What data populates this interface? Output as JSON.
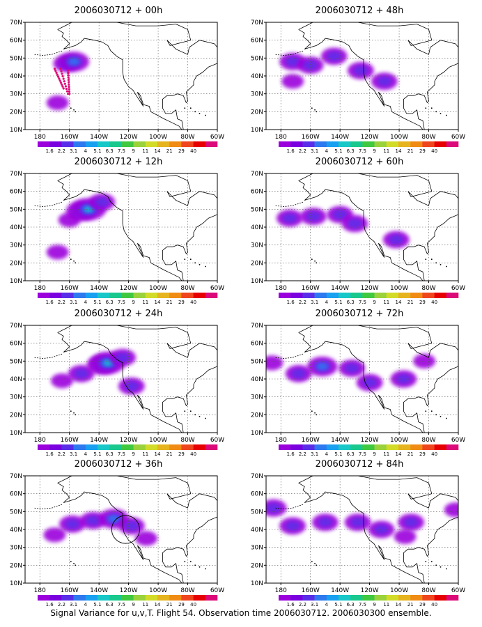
{
  "caption": "Signal Variance for u,v,T. Flight 54. Observation time 2006030712. 2006030300 ensemble.",
  "chart_data": [
    {
      "type": "heatmap",
      "title": "2006030712 + 00h",
      "blobs": [
        {
          "lon": -162,
          "lat": 47,
          "level": 3
        },
        {
          "lon": -157,
          "lat": 48,
          "level": 4
        },
        {
          "lon": -168,
          "lat": 25,
          "level": 2
        }
      ],
      "obs_points": true
    },
    {
      "type": "heatmap",
      "title": "2006030712 + 12h",
      "blobs": [
        {
          "lon": -160,
          "lat": 44,
          "level": 2
        },
        {
          "lon": -152,
          "lat": 49,
          "level": 4
        },
        {
          "lon": -147,
          "lat": 50,
          "level": 5
        },
        {
          "lon": -138,
          "lat": 54,
          "level": 3
        },
        {
          "lon": -168,
          "lat": 26,
          "level": 2
        }
      ]
    },
    {
      "type": "heatmap",
      "title": "2006030712 + 24h",
      "blobs": [
        {
          "lon": -165,
          "lat": 39,
          "level": 2
        },
        {
          "lon": -152,
          "lat": 43,
          "level": 3
        },
        {
          "lon": -138,
          "lat": 48,
          "level": 4
        },
        {
          "lon": -134,
          "lat": 49,
          "level": 5
        },
        {
          "lon": -124,
          "lat": 52,
          "level": 3
        },
        {
          "lon": -118,
          "lat": 36,
          "level": 3
        }
      ]
    },
    {
      "type": "heatmap",
      "title": "2006030712 + 36h",
      "blobs": [
        {
          "lon": -170,
          "lat": 37,
          "level": 2
        },
        {
          "lon": -158,
          "lat": 43,
          "level": 3
        },
        {
          "lon": -144,
          "lat": 45,
          "level": 3
        },
        {
          "lon": -130,
          "lat": 46,
          "level": 4
        },
        {
          "lon": -118,
          "lat": 42,
          "level": 3
        },
        {
          "lon": -108,
          "lat": 35,
          "level": 2
        }
      ],
      "circle": {
        "lon": -122,
        "lat": 40
      }
    },
    {
      "type": "heatmap",
      "title": "2006030712 + 48h",
      "blobs": [
        {
          "lon": -172,
          "lat": 48,
          "level": 3
        },
        {
          "lon": -160,
          "lat": 46,
          "level": 3
        },
        {
          "lon": -144,
          "lat": 51,
          "level": 3
        },
        {
          "lon": -126,
          "lat": 43,
          "level": 3
        },
        {
          "lon": -110,
          "lat": 37,
          "level": 3
        },
        {
          "lon": -172,
          "lat": 37,
          "level": 2
        }
      ]
    },
    {
      "type": "heatmap",
      "title": "2006030712 + 60h",
      "blobs": [
        {
          "lon": -174,
          "lat": 45,
          "level": 3
        },
        {
          "lon": -158,
          "lat": 46,
          "level": 3
        },
        {
          "lon": -140,
          "lat": 47,
          "level": 3
        },
        {
          "lon": -130,
          "lat": 42,
          "level": 3
        },
        {
          "lon": -102,
          "lat": 33,
          "level": 3
        }
      ]
    },
    {
      "type": "heatmap",
      "title": "2006030712 + 72h",
      "blobs": [
        {
          "lon": -186,
          "lat": 49,
          "level": 2
        },
        {
          "lon": -168,
          "lat": 43,
          "level": 3
        },
        {
          "lon": -152,
          "lat": 47,
          "level": 4
        },
        {
          "lon": -132,
          "lat": 46,
          "level": 3
        },
        {
          "lon": -120,
          "lat": 38,
          "level": 3
        },
        {
          "lon": -97,
          "lat": 40,
          "level": 3
        },
        {
          "lon": -83,
          "lat": 50,
          "level": 2
        }
      ]
    },
    {
      "type": "heatmap",
      "title": "2006030712 + 84h",
      "blobs": [
        {
          "lon": -185,
          "lat": 52,
          "level": 3
        },
        {
          "lon": -172,
          "lat": 42,
          "level": 3
        },
        {
          "lon": -150,
          "lat": 44,
          "level": 3
        },
        {
          "lon": -128,
          "lat": 44,
          "level": 3
        },
        {
          "lon": -112,
          "lat": 40,
          "level": 3
        },
        {
          "lon": -92,
          "lat": 44,
          "level": 3
        },
        {
          "lon": -96,
          "lat": 36,
          "level": 2
        },
        {
          "lon": -62,
          "lat": 51,
          "level": 2
        }
      ]
    }
  ],
  "axes": {
    "lat_ticks": [
      "10N",
      "20N",
      "30N",
      "40N",
      "50N",
      "60N",
      "70N"
    ],
    "lon_ticks": [
      "180",
      "160W",
      "140W",
      "120W",
      "100W",
      "80W",
      "60W"
    ],
    "lon_range": [
      -190,
      -60
    ],
    "lat_range": [
      10,
      70
    ]
  },
  "colorbar": {
    "labels": [
      "1.6",
      "2.2",
      "3.1",
      "4",
      "5.1",
      "6.3",
      "7.5",
      "9",
      "11",
      "14",
      "21",
      "29",
      "40"
    ],
    "colors": [
      "#9b00dc",
      "#7a00e0",
      "#5a2ee8",
      "#2e78f0",
      "#1aa0f0",
      "#18c8c8",
      "#19c88c",
      "#40c840",
      "#9ad23c",
      "#d2dc28",
      "#e6b41e",
      "#f08c14",
      "#f0461e",
      "#e60000",
      "#dc0a78"
    ]
  }
}
